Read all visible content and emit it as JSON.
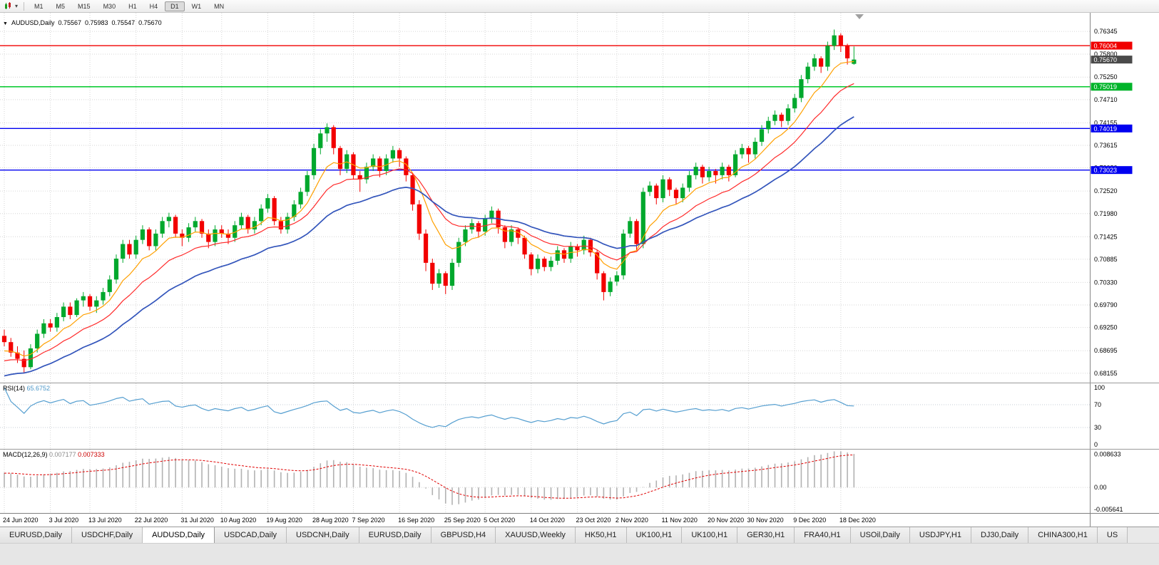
{
  "toolbar": {
    "timeframes": [
      "M1",
      "M5",
      "M15",
      "M30",
      "H1",
      "H4",
      "D1",
      "W1",
      "MN"
    ],
    "active_timeframe": "D1"
  },
  "chart_header": {
    "symbol": "AUDUSD,Daily",
    "open": "0.75567",
    "high": "0.75983",
    "low": "0.75547",
    "close": "0.75670"
  },
  "price_axis": {
    "labels": [
      "0.76345",
      "0.75800",
      "0.75250",
      "0.74710",
      "0.74155",
      "0.73615",
      "0.73080",
      "0.72520",
      "0.71980",
      "0.71425",
      "0.70885",
      "0.70330",
      "0.69790",
      "0.69250",
      "0.68695",
      "0.68155"
    ],
    "badges": [
      {
        "value": "0.76004",
        "color": "#f00000"
      },
      {
        "value": "0.75670",
        "color": "#4a4a4a"
      },
      {
        "value": "0.75019",
        "color": "#00b42a"
      },
      {
        "value": "0.74019",
        "color": "#0000f0"
      },
      {
        "value": "0.73023",
        "color": "#0000f0"
      }
    ]
  },
  "indicators": {
    "rsi": {
      "label": "RSI(14)",
      "value": "65.6752",
      "levels": [
        "100",
        "70",
        "30",
        "0"
      ]
    },
    "macd": {
      "label": "MACD(12,26,9)",
      "value1": "0.007177",
      "value2": "0.007333",
      "axis": [
        "0.008633",
        "0.00",
        "-0.005641"
      ]
    }
  },
  "date_axis": [
    "24 Jun 2020",
    "3 Jul 2020",
    "13 Jul 2020",
    "22 Jul 2020",
    "31 Jul 2020",
    "10 Aug 2020",
    "19 Aug 2020",
    "28 Aug 2020",
    "7 Sep 2020",
    "16 Sep 2020",
    "25 Sep 2020",
    "5 Oct 2020",
    "14 Oct 2020",
    "23 Oct 2020",
    "2 Nov 2020",
    "11 Nov 2020",
    "20 Nov 2020",
    "30 Nov 2020",
    "9 Dec 2020",
    "18 Dec 2020"
  ],
  "tabs": {
    "active_index": 2,
    "items": [
      "EURUSD,Daily",
      "USDCHF,Daily",
      "AUDUSD,Daily",
      "USDCAD,Daily",
      "USDCNH,Daily",
      "EURUSD,Daily",
      "GBPUSD,H4",
      "XAUUSD,Weekly",
      "HK50,H1",
      "UK100,H1",
      "UK100,H1",
      "GER30,H1",
      "FRA40,H1",
      "USOil,Daily",
      "USDJPY,H1",
      "DJ30,Daily",
      "CHINA300,H1",
      "US"
    ]
  },
  "chart_data": {
    "type": "candlestick",
    "symbol": "AUDUSD",
    "timeframe": "Daily",
    "ylim": [
      0.6793,
      0.7679
    ],
    "current_price": 0.7567,
    "colors": {
      "up": "#00a82d",
      "down": "#f20000",
      "rsi": "#569fd0"
    },
    "hlines": [
      {
        "value": 0.76004,
        "color": "#f00000"
      },
      {
        "value": 0.75019,
        "color": "#00c82a"
      },
      {
        "value": 0.74019,
        "color": "#0000f0"
      },
      {
        "value": 0.73023,
        "color": "#0000f0"
      }
    ],
    "moving_averages": [
      {
        "period": 8,
        "color": "#ffa000"
      },
      {
        "period": 16,
        "color": "#ff2a2a"
      },
      {
        "period": 30,
        "color": "#3355bb"
      }
    ],
    "rsi": {
      "period": 14,
      "last": 65.6752
    },
    "macd": {
      "fast": 12,
      "slow": 26,
      "signal": 9,
      "last": 0.007177,
      "signal_last": 0.007333,
      "view_max": 0.008633,
      "view_min": -0.005641
    },
    "date_indices": [
      0,
      7,
      13,
      20,
      27,
      33,
      40,
      47,
      53,
      60,
      67,
      73,
      80,
      87,
      93,
      100,
      107,
      113,
      120,
      127
    ],
    "ohlc": [
      [
        0.6905,
        0.692,
        0.688,
        0.689
      ],
      [
        0.689,
        0.69,
        0.6855,
        0.6865
      ],
      [
        0.6865,
        0.688,
        0.684,
        0.685
      ],
      [
        0.685,
        0.687,
        0.6816,
        0.683
      ],
      [
        0.683,
        0.6885,
        0.6825,
        0.6875
      ],
      [
        0.6875,
        0.692,
        0.6865,
        0.691
      ],
      [
        0.691,
        0.6945,
        0.69,
        0.6935
      ],
      [
        0.6935,
        0.6945,
        0.6915,
        0.6925
      ],
      [
        0.6925,
        0.696,
        0.6915,
        0.695
      ],
      [
        0.695,
        0.6985,
        0.694,
        0.6975
      ],
      [
        0.6975,
        0.6985,
        0.6945,
        0.6955
      ],
      [
        0.6955,
        0.6995,
        0.695,
        0.699
      ],
      [
        0.699,
        0.701,
        0.6975,
        0.7
      ],
      [
        0.7,
        0.7005,
        0.6965,
        0.6975
      ],
      [
        0.6975,
        0.7,
        0.696,
        0.699
      ],
      [
        0.699,
        0.702,
        0.698,
        0.701
      ],
      [
        0.701,
        0.705,
        0.7,
        0.704
      ],
      [
        0.704,
        0.71,
        0.703,
        0.709
      ],
      [
        0.709,
        0.7135,
        0.708,
        0.7125
      ],
      [
        0.7125,
        0.7135,
        0.709,
        0.71
      ],
      [
        0.71,
        0.7145,
        0.709,
        0.7135
      ],
      [
        0.7135,
        0.717,
        0.7125,
        0.716
      ],
      [
        0.716,
        0.7165,
        0.711,
        0.712
      ],
      [
        0.712,
        0.716,
        0.711,
        0.715
      ],
      [
        0.715,
        0.719,
        0.714,
        0.718
      ],
      [
        0.718,
        0.72,
        0.7165,
        0.719
      ],
      [
        0.719,
        0.7195,
        0.714,
        0.715
      ],
      [
        0.715,
        0.716,
        0.712,
        0.714
      ],
      [
        0.714,
        0.7175,
        0.713,
        0.7165
      ],
      [
        0.7165,
        0.719,
        0.7155,
        0.718
      ],
      [
        0.718,
        0.7185,
        0.714,
        0.715
      ],
      [
        0.715,
        0.716,
        0.7115,
        0.713
      ],
      [
        0.713,
        0.717,
        0.712,
        0.716
      ],
      [
        0.716,
        0.717,
        0.714,
        0.715
      ],
      [
        0.715,
        0.716,
        0.7125,
        0.714
      ],
      [
        0.714,
        0.718,
        0.713,
        0.717
      ],
      [
        0.717,
        0.72,
        0.716,
        0.719
      ],
      [
        0.719,
        0.7195,
        0.715,
        0.716
      ],
      [
        0.716,
        0.719,
        0.715,
        0.718
      ],
      [
        0.718,
        0.722,
        0.717,
        0.721
      ],
      [
        0.721,
        0.7245,
        0.72,
        0.7235
      ],
      [
        0.7235,
        0.724,
        0.717,
        0.718
      ],
      [
        0.718,
        0.719,
        0.715,
        0.716
      ],
      [
        0.716,
        0.72,
        0.715,
        0.719
      ],
      [
        0.719,
        0.723,
        0.718,
        0.722
      ],
      [
        0.722,
        0.726,
        0.721,
        0.725
      ],
      [
        0.725,
        0.73,
        0.724,
        0.729
      ],
      [
        0.729,
        0.7365,
        0.728,
        0.7355
      ],
      [
        0.7355,
        0.74,
        0.734,
        0.739
      ],
      [
        0.739,
        0.7414,
        0.737,
        0.7405
      ],
      [
        0.7405,
        0.741,
        0.734,
        0.7355
      ],
      [
        0.7355,
        0.736,
        0.729,
        0.7305
      ],
      [
        0.7305,
        0.735,
        0.7295,
        0.734
      ],
      [
        0.734,
        0.7345,
        0.728,
        0.729
      ],
      [
        0.729,
        0.73,
        0.725,
        0.728
      ],
      [
        0.728,
        0.732,
        0.727,
        0.731
      ],
      [
        0.731,
        0.734,
        0.73,
        0.733
      ],
      [
        0.733,
        0.7335,
        0.7285,
        0.73
      ],
      [
        0.73,
        0.734,
        0.729,
        0.733
      ],
      [
        0.733,
        0.736,
        0.732,
        0.735
      ],
      [
        0.735,
        0.7355,
        0.731,
        0.733
      ],
      [
        0.733,
        0.7335,
        0.7275,
        0.729
      ],
      [
        0.729,
        0.7295,
        0.7205,
        0.722
      ],
      [
        0.722,
        0.723,
        0.7135,
        0.715
      ],
      [
        0.715,
        0.716,
        0.706,
        0.708
      ],
      [
        0.708,
        0.709,
        0.7015,
        0.703
      ],
      [
        0.703,
        0.7065,
        0.702,
        0.7055
      ],
      [
        0.7055,
        0.706,
        0.7005,
        0.7025
      ],
      [
        0.7025,
        0.709,
        0.7015,
        0.708
      ],
      [
        0.708,
        0.714,
        0.707,
        0.713
      ],
      [
        0.713,
        0.717,
        0.712,
        0.716
      ],
      [
        0.716,
        0.7185,
        0.715,
        0.7175
      ],
      [
        0.7175,
        0.718,
        0.714,
        0.7155
      ],
      [
        0.7155,
        0.7195,
        0.7145,
        0.7185
      ],
      [
        0.7185,
        0.7215,
        0.7175,
        0.7205
      ],
      [
        0.7205,
        0.721,
        0.715,
        0.7165
      ],
      [
        0.7165,
        0.717,
        0.7115,
        0.713
      ],
      [
        0.713,
        0.717,
        0.712,
        0.716
      ],
      [
        0.716,
        0.7165,
        0.7125,
        0.714
      ],
      [
        0.714,
        0.7145,
        0.709,
        0.71
      ],
      [
        0.71,
        0.7105,
        0.705,
        0.7065
      ],
      [
        0.7065,
        0.71,
        0.7055,
        0.709
      ],
      [
        0.709,
        0.7095,
        0.706,
        0.707
      ],
      [
        0.707,
        0.7095,
        0.706,
        0.7085
      ],
      [
        0.7085,
        0.712,
        0.7075,
        0.711
      ],
      [
        0.711,
        0.7115,
        0.708,
        0.709
      ],
      [
        0.709,
        0.713,
        0.708,
        0.712
      ],
      [
        0.712,
        0.7125,
        0.7095,
        0.711
      ],
      [
        0.711,
        0.7145,
        0.71,
        0.7135
      ],
      [
        0.7135,
        0.714,
        0.7095,
        0.7105
      ],
      [
        0.7105,
        0.711,
        0.704,
        0.7055
      ],
      [
        0.7055,
        0.706,
        0.699,
        0.701
      ],
      [
        0.701,
        0.7045,
        0.7,
        0.7035
      ],
      [
        0.7035,
        0.706,
        0.7025,
        0.705
      ],
      [
        0.705,
        0.716,
        0.704,
        0.715
      ],
      [
        0.715,
        0.719,
        0.714,
        0.718
      ],
      [
        0.718,
        0.7185,
        0.711,
        0.7125
      ],
      [
        0.7125,
        0.726,
        0.7115,
        0.725
      ],
      [
        0.725,
        0.7275,
        0.724,
        0.7265
      ],
      [
        0.7265,
        0.727,
        0.722,
        0.7235
      ],
      [
        0.7235,
        0.729,
        0.7225,
        0.728
      ],
      [
        0.728,
        0.7285,
        0.724,
        0.7255
      ],
      [
        0.7255,
        0.726,
        0.722,
        0.7235
      ],
      [
        0.7235,
        0.727,
        0.7225,
        0.726
      ],
      [
        0.726,
        0.73,
        0.725,
        0.729
      ],
      [
        0.729,
        0.732,
        0.728,
        0.731
      ],
      [
        0.731,
        0.7315,
        0.727,
        0.7285
      ],
      [
        0.7285,
        0.731,
        0.7275,
        0.73
      ],
      [
        0.73,
        0.7305,
        0.727,
        0.729
      ],
      [
        0.729,
        0.732,
        0.728,
        0.731
      ],
      [
        0.731,
        0.7315,
        0.7275,
        0.729
      ],
      [
        0.729,
        0.735,
        0.7285,
        0.734
      ],
      [
        0.734,
        0.7365,
        0.733,
        0.7355
      ],
      [
        0.7355,
        0.736,
        0.732,
        0.734
      ],
      [
        0.734,
        0.738,
        0.733,
        0.737
      ],
      [
        0.737,
        0.741,
        0.736,
        0.74
      ],
      [
        0.74,
        0.743,
        0.739,
        0.742
      ],
      [
        0.742,
        0.7445,
        0.741,
        0.7435
      ],
      [
        0.7435,
        0.744,
        0.7405,
        0.742
      ],
      [
        0.742,
        0.746,
        0.741,
        0.745
      ],
      [
        0.745,
        0.7485,
        0.744,
        0.7475
      ],
      [
        0.7475,
        0.753,
        0.7465,
        0.752
      ],
      [
        0.752,
        0.756,
        0.751,
        0.755
      ],
      [
        0.755,
        0.758,
        0.754,
        0.757
      ],
      [
        0.757,
        0.7575,
        0.7535,
        0.755
      ],
      [
        0.755,
        0.761,
        0.754,
        0.76
      ],
      [
        0.76,
        0.7639,
        0.759,
        0.7625
      ],
      [
        0.7625,
        0.763,
        0.7585,
        0.76
      ],
      [
        0.76,
        0.7605,
        0.7555,
        0.757
      ],
      [
        0.75567,
        0.75983,
        0.75547,
        0.7567
      ]
    ]
  }
}
